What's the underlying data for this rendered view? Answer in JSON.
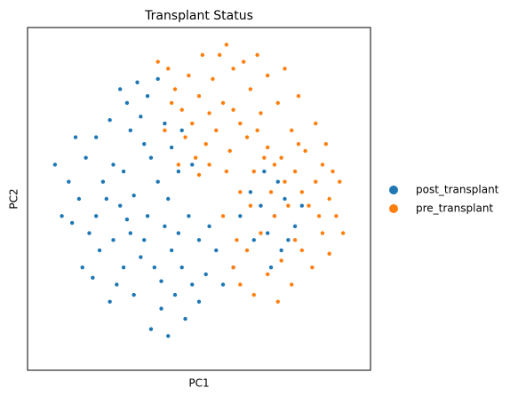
{
  "chart_data": {
    "type": "scatter",
    "title": "Transplant Status",
    "x_label": "PC1",
    "y_label": "PC2",
    "xlim": [
      0,
      100
    ],
    "ylim": [
      0,
      100
    ],
    "grid": false,
    "legend": "right",
    "series": [
      {
        "name": "post_transplant",
        "color": "#1f77b4",
        "x": [
          31,
          25,
          34,
          30,
          28,
          22,
          36,
          33,
          27,
          20,
          38,
          35,
          30,
          25,
          40,
          42,
          37,
          45,
          48,
          43,
          39,
          46,
          50,
          52,
          33,
          28,
          18,
          15,
          12,
          17,
          20,
          24,
          29,
          35,
          40,
          42,
          44,
          41,
          47,
          50,
          55,
          53,
          21,
          26,
          31,
          36,
          41,
          16,
          10,
          8,
          14,
          38,
          32,
          27,
          45,
          48,
          23,
          29,
          34,
          39,
          44,
          13,
          19,
          24,
          57,
          60,
          68,
          72,
          75,
          70,
          65,
          78,
          73,
          66,
          80,
          62,
          74,
          69,
          76,
          71
        ],
        "y": [
          51,
          60,
          66,
          70,
          58,
          55,
          62,
          74,
          48,
          45,
          55,
          45,
          40,
          38,
          42,
          35,
          30,
          30,
          25,
          22,
          18,
          15,
          20,
          28,
          33,
          30,
          40,
          50,
          55,
          62,
          68,
          73,
          78,
          80,
          72,
          65,
          58,
          50,
          45,
          38,
          35,
          42,
          35,
          25,
          22,
          12,
          10,
          30,
          45,
          60,
          68,
          85,
          84,
          82,
          70,
          60,
          50,
          44,
          38,
          26,
          40,
          43,
          27,
          20,
          25,
          30,
          48,
          45,
          50,
          40,
          52,
          42,
          55,
          38,
          48,
          45,
          35,
          58,
          38,
          30
        ]
      },
      {
        "name": "pre_transplant",
        "color": "#ff7f0e",
        "x": [
          59,
          55,
          62,
          57,
          52,
          48,
          50,
          54,
          60,
          65,
          68,
          64,
          70,
          72,
          75,
          78,
          80,
          82,
          85,
          76,
          72,
          68,
          64,
          60,
          62,
          70,
          74,
          78,
          84,
          88,
          86,
          80,
          58,
          53,
          49,
          46,
          45,
          43,
          41,
          47,
          56,
          63,
          70,
          73,
          77,
          81,
          86,
          89,
          90,
          83,
          77,
          66,
          61,
          57,
          62,
          66,
          71,
          74,
          79,
          67,
          60,
          53,
          50,
          44,
          40,
          42,
          38,
          51,
          58,
          67,
          75,
          79,
          84,
          87,
          91,
          92,
          88,
          73,
          65,
          69
        ],
        "y": [
          64,
          70,
          72,
          78,
          66,
          72,
          80,
          85,
          88,
          82,
          75,
          68,
          65,
          60,
          55,
          58,
          52,
          48,
          45,
          48,
          45,
          40,
          35,
          30,
          25,
          28,
          32,
          38,
          55,
          50,
          40,
          35,
          58,
          60,
          62,
          68,
          76,
          82,
          88,
          86,
          92,
          90,
          86,
          78,
          70,
          64,
          60,
          58,
          45,
          30,
          25,
          22,
          38,
          45,
          52,
          58,
          52,
          62,
          66,
          70,
          76,
          75,
          57,
          60,
          70,
          78,
          90,
          92,
          95,
          92,
          88,
          80,
          72,
          66,
          55,
          40,
          34,
          20,
          48,
          62
        ]
      }
    ]
  }
}
